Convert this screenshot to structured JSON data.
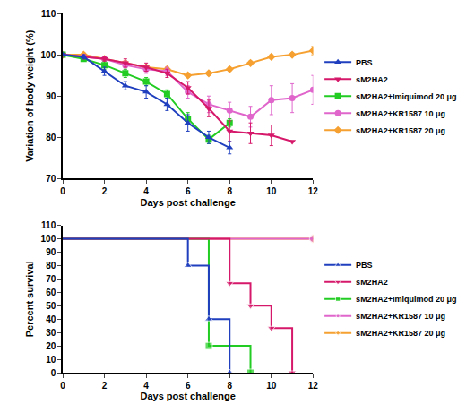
{
  "chart_data": [
    {
      "type": "line",
      "x_label": "Days post challenge",
      "y_label": "Variation of body weight (%)",
      "xlim": [
        0,
        12
      ],
      "xticks": [
        0,
        2,
        4,
        6,
        8,
        10,
        12
      ],
      "ylim": [
        70,
        110
      ],
      "yticks": [
        70,
        80,
        90,
        100,
        110
      ],
      "grid": false,
      "legend": "right",
      "series": [
        {
          "name": "PBS",
          "color": "#1f3fbf",
          "marker": "triangle-up",
          "x": [
            0,
            1,
            2,
            3,
            4,
            5,
            6,
            7,
            8
          ],
          "values": [
            100,
            99.5,
            96,
            92.5,
            91,
            88,
            83.5,
            80,
            77.5
          ],
          "error": [
            0,
            0.5,
            1,
            1,
            1.5,
            1.5,
            2,
            1.5,
            1.5
          ]
        },
        {
          "name": "sM2HA2",
          "color": "#d6186a",
          "marker": "triangle-down",
          "x": [
            0,
            1,
            2,
            3,
            4,
            5,
            6,
            7,
            8,
            9,
            10,
            11
          ],
          "values": [
            100,
            99.5,
            99,
            98,
            97,
            95.5,
            92,
            87,
            81.5,
            81,
            80.5,
            79
          ],
          "error": [
            0,
            0.5,
            0.5,
            1,
            1,
            1,
            1.5,
            2,
            2.5,
            2.5,
            2.5,
            0
          ]
        },
        {
          "name": "sM2HA2+Imiquimod 20 μg",
          "color": "#22cc22",
          "marker": "square",
          "x": [
            0,
            1,
            2,
            3,
            4,
            5,
            6,
            7,
            8
          ],
          "values": [
            100,
            99,
            97.5,
            95.5,
            93.5,
            90.5,
            84.5,
            79.5,
            83.5
          ],
          "error": [
            0,
            0.5,
            1,
            1,
            1,
            1,
            1.5,
            1,
            1
          ]
        },
        {
          "name": "sM2HA2+KR1587 10 μg",
          "color": "#e066cc",
          "marker": "circle",
          "x": [
            0,
            1,
            2,
            3,
            4,
            5,
            6,
            7,
            8,
            9,
            10,
            11,
            12
          ],
          "values": [
            100,
            99.5,
            99,
            97.5,
            96.5,
            96,
            91,
            88,
            86.5,
            85,
            89,
            89.5,
            91.5
          ],
          "error": [
            0,
            0.5,
            0.5,
            1,
            1,
            1,
            1.5,
            2,
            2,
            2.5,
            3.5,
            3.5,
            3.5
          ]
        },
        {
          "name": "sM2HA2+KR1587 20 μg",
          "color": "#f5a030",
          "marker": "diamond",
          "x": [
            0,
            1,
            2,
            3,
            4,
            5,
            6,
            7,
            8,
            9,
            10,
            11,
            12
          ],
          "values": [
            100,
            100,
            99,
            98,
            97,
            96.5,
            95,
            95.5,
            96.5,
            98,
            99.5,
            100,
            101
          ],
          "error": [
            0,
            0.5,
            0.5,
            0.5,
            0.5,
            0.5,
            0.5,
            0.5,
            0.5,
            0.5,
            0.5,
            0.5,
            1
          ]
        }
      ]
    },
    {
      "type": "step",
      "x_label": "Days post challenge",
      "y_label": "Percent survival",
      "xlim": [
        0,
        12
      ],
      "xticks": [
        0,
        2,
        4,
        6,
        8,
        10,
        12
      ],
      "ylim": [
        0,
        110
      ],
      "yticks": [
        0,
        10,
        20,
        30,
        40,
        50,
        60,
        70,
        80,
        90,
        100,
        110
      ],
      "grid": false,
      "legend": "right",
      "series": [
        {
          "name": "PBS",
          "color": "#1f3fbf",
          "marker": "triangle-up",
          "x": [
            0,
            6,
            7,
            8
          ],
          "values": [
            100,
            80,
            40,
            0
          ]
        },
        {
          "name": "sM2HA2",
          "color": "#d6186a",
          "marker": "triangle-down",
          "x": [
            0,
            8,
            9,
            10,
            11
          ],
          "values": [
            100,
            66.7,
            50,
            33.3,
            0
          ]
        },
        {
          "name": "sM2HA2+Imiquimod 20 μg",
          "color": "#22cc22",
          "marker": "square",
          "x": [
            0,
            7,
            9
          ],
          "values": [
            100,
            20,
            0
          ]
        },
        {
          "name": "sM2HA2+KR1587 10 μg",
          "color": "#e066cc",
          "marker": "circle",
          "x": [
            0,
            12
          ],
          "values": [
            100,
            100
          ]
        },
        {
          "name": "sM2HA2+KR1587 20 μg",
          "color": "#f5a030",
          "marker": "diamond",
          "x": [
            0,
            12
          ],
          "values": [
            100,
            100
          ]
        }
      ]
    }
  ]
}
